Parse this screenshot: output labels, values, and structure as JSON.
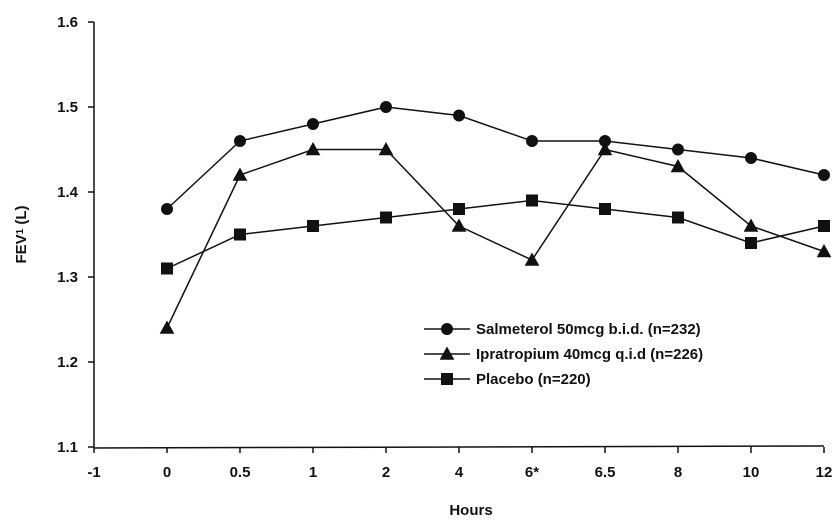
{
  "chart_data": {
    "type": "line",
    "title": "",
    "xlabel": "Hours",
    "ylabel": "FEV",
    "ylabel_subscript": "1",
    "ylabel_unit": " (L)",
    "ylim": [
      1.1,
      1.6
    ],
    "yticks": [
      1.1,
      1.2,
      1.3,
      1.4,
      1.5,
      1.6
    ],
    "ytick_labels": [
      "1.1",
      "1.2",
      "1.3",
      "1.4",
      "1.5",
      "1.6"
    ],
    "categories": [
      "-1",
      "0",
      "0.5",
      "1",
      "2",
      "4",
      "6*",
      "6.5",
      "8",
      "10",
      "12"
    ],
    "grid": false,
    "legend_position": "bottom-right",
    "series": [
      {
        "name": "Salmeterol 50mcg b.i.d. (n=232)",
        "marker": "circle",
        "values": [
          null,
          1.38,
          1.46,
          1.48,
          1.5,
          1.49,
          1.46,
          1.46,
          1.45,
          1.44,
          1.42
        ]
      },
      {
        "name": "Ipratropium 40mcg q.i.d (n=226)",
        "marker": "triangle",
        "values": [
          null,
          1.24,
          1.42,
          1.45,
          1.45,
          1.36,
          1.32,
          1.45,
          1.43,
          1.36,
          1.33
        ]
      },
      {
        "name": "Placebo (n=220)",
        "marker": "square",
        "values": [
          null,
          1.31,
          1.35,
          1.36,
          1.37,
          1.38,
          1.39,
          1.38,
          1.37,
          1.34,
          1.36
        ]
      }
    ]
  }
}
